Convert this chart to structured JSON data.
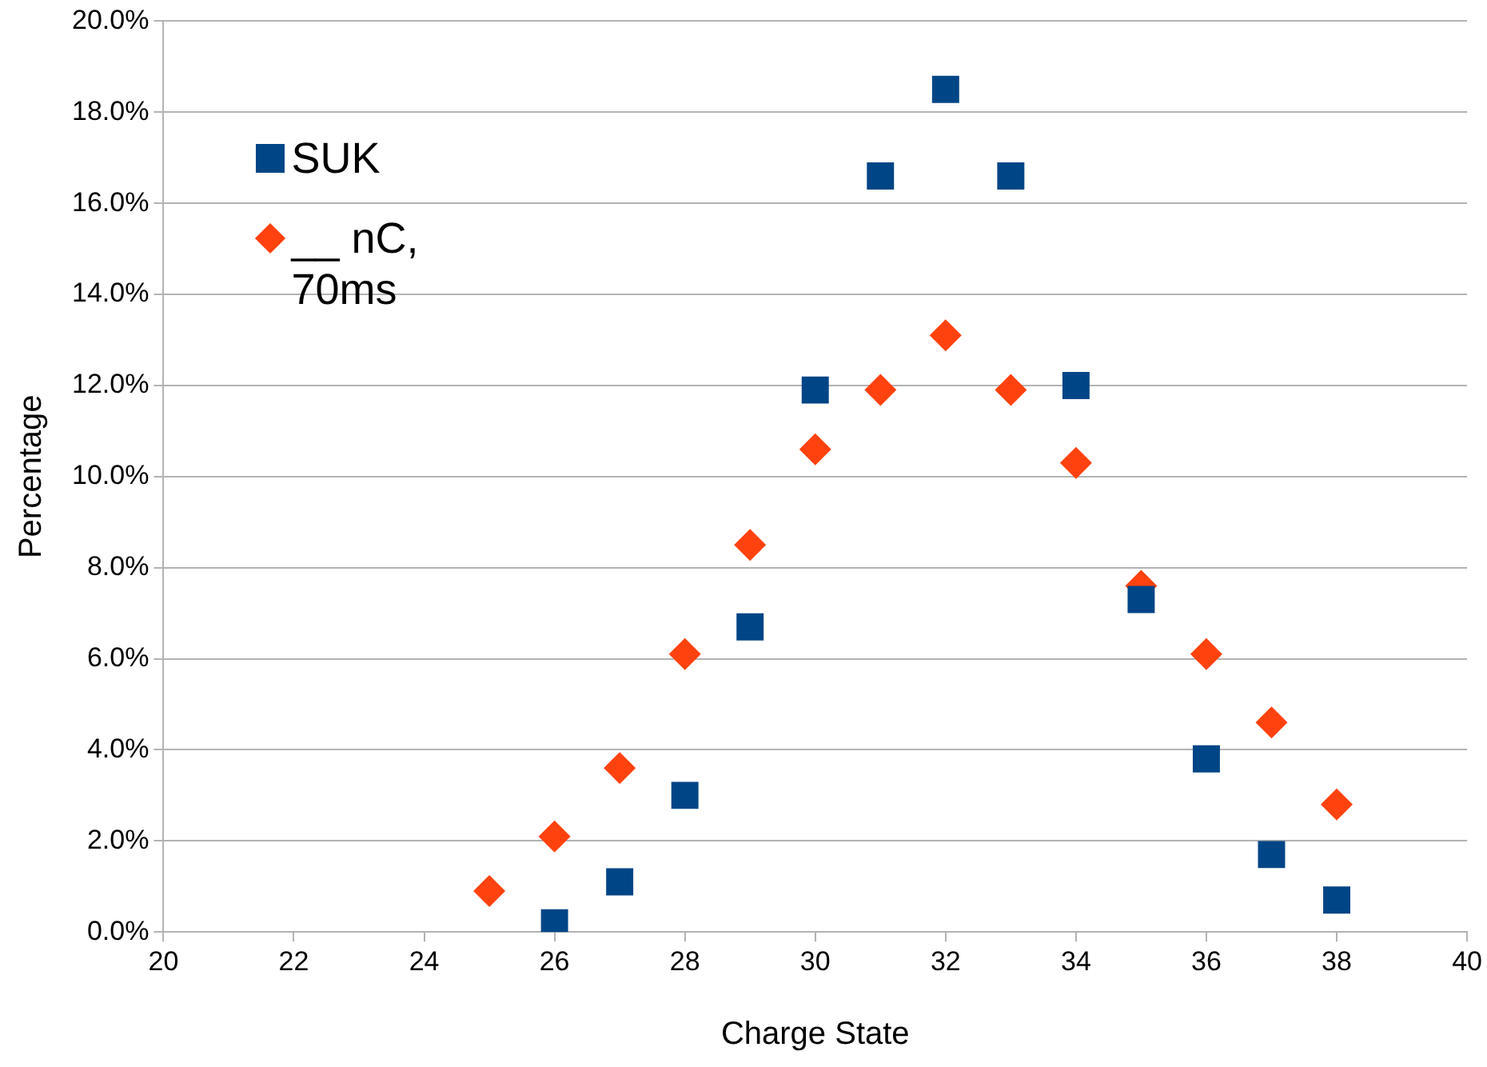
{
  "chart_data": {
    "type": "scatter",
    "xlabel": "Charge State",
    "ylabel": "Percentage",
    "xlim": [
      20,
      40
    ],
    "xticks": [
      20,
      22,
      24,
      26,
      28,
      30,
      32,
      34,
      36,
      38,
      40
    ],
    "ylim": [
      0,
      20
    ],
    "yticks": [
      {
        "value": 0,
        "label": "0.0%"
      },
      {
        "value": 2,
        "label": "2.0%"
      },
      {
        "value": 4,
        "label": "4.0%"
      },
      {
        "value": 6,
        "label": "6.0%"
      },
      {
        "value": 8,
        "label": "8.0%"
      },
      {
        "value": 10,
        "label": "10.0%"
      },
      {
        "value": 12,
        "label": "12.0%"
      },
      {
        "value": 14,
        "label": "14.0%"
      },
      {
        "value": 16,
        "label": "16.0%"
      },
      {
        "value": 18,
        "label": "18.0%"
      },
      {
        "value": 20,
        "label": "20.0%"
      }
    ],
    "grid": "y",
    "legend": "top left",
    "series": [
      {
        "name": "SUK",
        "color": "#004586",
        "marker": "square",
        "x": [
          26,
          27,
          28,
          29,
          30,
          31,
          32,
          33,
          34,
          35,
          36,
          37,
          38
        ],
        "values": [
          0.2,
          1.1,
          3.0,
          6.7,
          11.9,
          16.6,
          18.5,
          16.6,
          12.0,
          7.3,
          3.8,
          1.7,
          0.7
        ]
      },
      {
        "name": "__ nC, 70ms",
        "color": "#ff420e",
        "marker": "diamond",
        "x": [
          25,
          26,
          27,
          28,
          29,
          30,
          31,
          32,
          33,
          34,
          35,
          36,
          37,
          38
        ],
        "values": [
          0.9,
          2.1,
          3.6,
          6.1,
          8.5,
          10.6,
          11.9,
          13.1,
          11.9,
          10.3,
          7.6,
          6.1,
          4.6,
          2.8
        ]
      }
    ]
  }
}
